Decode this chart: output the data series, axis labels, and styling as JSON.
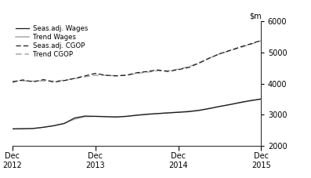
{
  "ylim": [
    2000,
    6000
  ],
  "yticks": [
    2000,
    3000,
    4000,
    5000,
    6000
  ],
  "xtick_labels": [
    "Dec\n2012",
    "Dec\n2013",
    "Dec\n2014",
    "Dec\n2015"
  ],
  "xtick_positions": [
    0,
    4,
    8,
    12
  ],
  "seas_wages": [
    2550,
    2555,
    2560,
    2600,
    2650,
    2720,
    2900,
    2960,
    2950,
    2940,
    2930,
    2950,
    2990,
    3020,
    3040,
    3060,
    3080,
    3100,
    3140,
    3200,
    3270,
    3330,
    3400,
    3460,
    3510
  ],
  "trend_wages": [
    2545,
    2550,
    2565,
    2600,
    2655,
    2730,
    2860,
    2940,
    2950,
    2945,
    2935,
    2950,
    2980,
    3010,
    3040,
    3065,
    3090,
    3115,
    3150,
    3210,
    3270,
    3330,
    3390,
    3450,
    3500
  ],
  "seas_cgop": [
    4050,
    4120,
    4060,
    4130,
    4050,
    4100,
    4170,
    4250,
    4330,
    4270,
    4250,
    4270,
    4350,
    4390,
    4440,
    4390,
    4450,
    4520,
    4660,
    4820,
    4960,
    5070,
    5180,
    5280,
    5390
  ],
  "trend_cgop": [
    4080,
    4090,
    4080,
    4090,
    4080,
    4110,
    4160,
    4220,
    4270,
    4265,
    4255,
    4270,
    4330,
    4370,
    4415,
    4415,
    4465,
    4545,
    4670,
    4820,
    4960,
    5060,
    5160,
    5265,
    5380
  ],
  "color_black": "#1a1a1a",
  "color_gray": "#aaaaaa",
  "n_points": 25,
  "legend_labels": [
    "Seas.adj. Wages",
    "Trend Wages",
    "Seas.adj. CGOP",
    "Trend CGOP"
  ]
}
